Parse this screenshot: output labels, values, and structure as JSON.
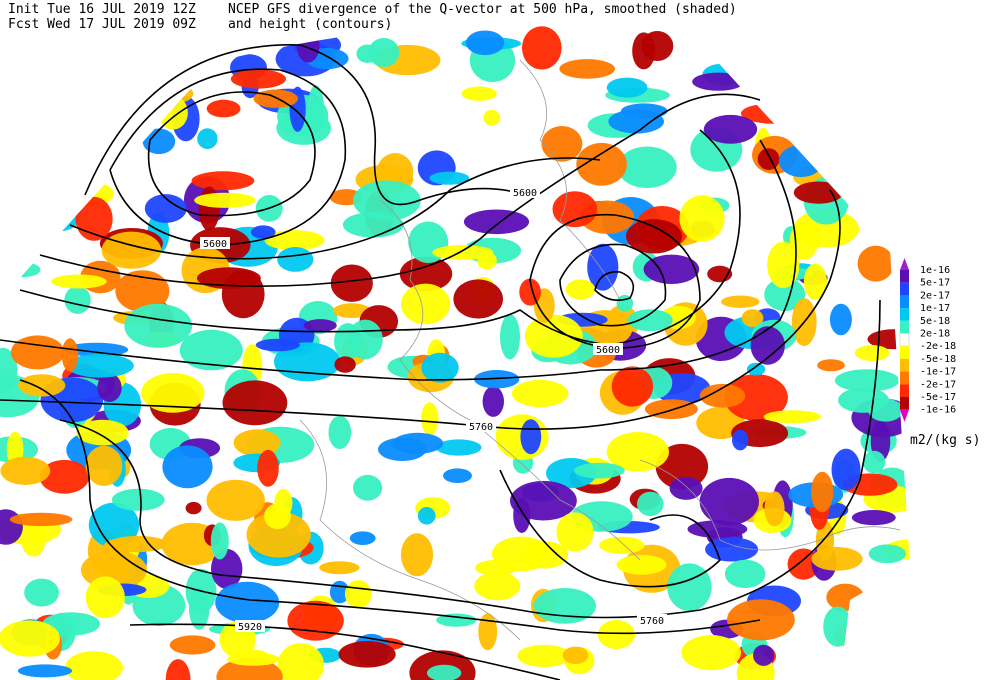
{
  "header": {
    "init": "Init  Tue 16 JUL 2019 12Z",
    "fcst": "Fcst Wed 17 JUL 2019 09Z",
    "title_line1": "NCEP GFS divergence of the Q-vector at 500 hPa, smoothed (shaded)",
    "title_line2": "and height (contours)"
  },
  "contour_labels": [
    5600,
    5600,
    5600,
    5760,
    5760,
    5920
  ],
  "colorbar": {
    "labels": [
      "1e-16",
      "5e-17",
      "2e-17",
      "1e-17",
      "5e-18",
      "2e-18",
      "-2e-18",
      "-5e-18",
      "-1e-17",
      "-2e-17",
      "-5e-17",
      "-1e-16"
    ],
    "colors": [
      "#a020c8",
      "#5a0fb4",
      "#1e46ff",
      "#0a8cff",
      "#00c8f0",
      "#38f0c0",
      "#ffffff",
      "#ffff00",
      "#ffbe00",
      "#ff7800",
      "#ff2800",
      "#b40000",
      "#e000c0"
    ],
    "units": "m2/(kg s)"
  }
}
